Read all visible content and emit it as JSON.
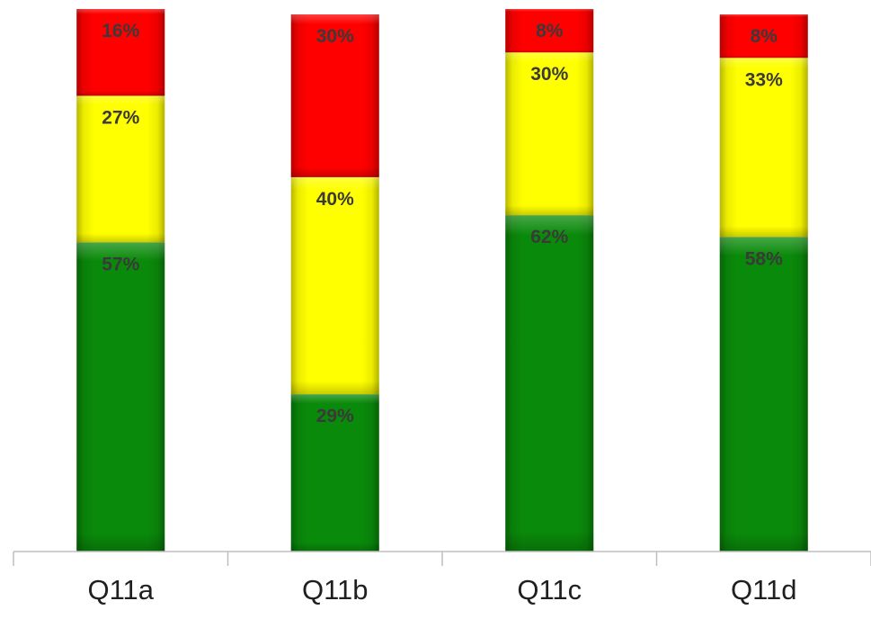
{
  "chart_data": {
    "type": "bar",
    "stacked": true,
    "categories": [
      "Q11a",
      "Q11b",
      "Q11c",
      "Q11d"
    ],
    "series": [
      {
        "values": [
          57,
          29,
          62,
          58
        ],
        "color": "#0a8a0a",
        "labels": [
          "57%",
          "29%",
          "62%",
          "58%"
        ]
      },
      {
        "values": [
          27,
          40,
          30,
          33
        ],
        "color": "#ffff00",
        "labels": [
          "27%",
          "40%",
          "30%",
          "33%"
        ]
      },
      {
        "values": [
          16,
          30,
          8,
          8
        ],
        "color": "#ff0000",
        "labels": [
          "16%",
          "30%",
          "8%",
          "8%"
        ]
      }
    ],
    "ylim": [
      0,
      100
    ],
    "grid": false,
    "legend": "none"
  }
}
